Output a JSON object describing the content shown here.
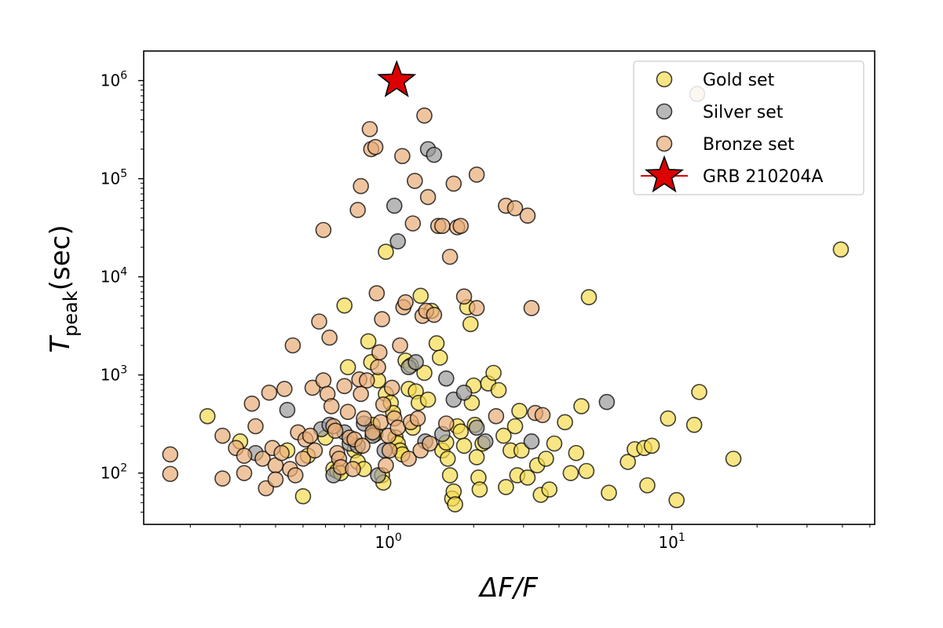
{
  "chart_data": {
    "type": "scatter",
    "xscale": "log",
    "yscale": "log",
    "xlim": [
      0.137,
      52
    ],
    "ylim": [
      30,
      2000000
    ],
    "xlabel": "ΔF/F",
    "ylabel_main": "T",
    "ylabel_sub": "peak",
    "ylabel_unit": "(sec)",
    "grid": false,
    "legend_position": "top-right",
    "x_ticks": [
      {
        "value": 1,
        "base": "10",
        "exp": "0"
      },
      {
        "value": 10,
        "base": "10",
        "exp": "1"
      }
    ],
    "y_ticks": [
      {
        "value": 100,
        "base": "10",
        "exp": "2"
      },
      {
        "value": 1000,
        "base": "10",
        "exp": "3"
      },
      {
        "value": 10000,
        "base": "10",
        "exp": "4"
      },
      {
        "value": 100000,
        "base": "10",
        "exp": "5"
      },
      {
        "value": 1000000,
        "base": "10",
        "exp": "6"
      }
    ],
    "series": [
      {
        "name": "Gold set",
        "color": "#f5dc50",
        "marker": "circle",
        "points": [
          [
            0.23,
            380
          ],
          [
            0.5,
            58
          ],
          [
            0.3,
            210
          ],
          [
            0.44,
            170
          ],
          [
            0.52,
            150
          ],
          [
            0.6,
            230
          ],
          [
            0.64,
            110
          ],
          [
            0.66,
            105
          ],
          [
            0.68,
            100
          ],
          [
            0.7,
            5100
          ],
          [
            0.72,
            1200
          ],
          [
            0.76,
            170
          ],
          [
            0.78,
            130
          ],
          [
            0.82,
            110
          ],
          [
            0.85,
            2200
          ],
          [
            0.87,
            1350
          ],
          [
            0.88,
            310
          ],
          [
            0.9,
            250
          ],
          [
            0.92,
            880
          ],
          [
            0.95,
            95
          ],
          [
            0.96,
            80
          ],
          [
            0.98,
            640
          ],
          [
            0.98,
            18000
          ],
          [
            1.02,
            520
          ],
          [
            1.04,
            410
          ],
          [
            1.06,
            230
          ],
          [
            1.08,
            200
          ],
          [
            1.1,
            170
          ],
          [
            1.12,
            155
          ],
          [
            1.15,
            1400
          ],
          [
            1.18,
            720
          ],
          [
            1.2,
            1250
          ],
          [
            1.22,
            290
          ],
          [
            1.25,
            680
          ],
          [
            1.28,
            520
          ],
          [
            1.3,
            6400
          ],
          [
            1.34,
            1050
          ],
          [
            1.38,
            560
          ],
          [
            1.42,
            4500
          ],
          [
            1.48,
            2100
          ],
          [
            1.52,
            1500
          ],
          [
            1.55,
            170
          ],
          [
            1.6,
            205
          ],
          [
            1.62,
            140
          ],
          [
            1.65,
            95
          ],
          [
            1.68,
            55
          ],
          [
            1.7,
            65
          ],
          [
            1.72,
            48
          ],
          [
            1.75,
            300
          ],
          [
            1.8,
            265
          ],
          [
            1.85,
            190
          ],
          [
            1.9,
            4900
          ],
          [
            1.95,
            3300
          ],
          [
            1.97,
            520
          ],
          [
            2.0,
            780
          ],
          [
            2.02,
            310
          ],
          [
            2.05,
            145
          ],
          [
            2.08,
            90
          ],
          [
            2.1,
            68
          ],
          [
            2.15,
            200
          ],
          [
            2.25,
            820
          ],
          [
            2.35,
            1050
          ],
          [
            2.45,
            700
          ],
          [
            2.55,
            240
          ],
          [
            2.6,
            72
          ],
          [
            2.7,
            170
          ],
          [
            2.8,
            300
          ],
          [
            2.85,
            95
          ],
          [
            2.9,
            430
          ],
          [
            2.95,
            170
          ],
          [
            3.1,
            90
          ],
          [
            3.35,
            120
          ],
          [
            3.45,
            60
          ],
          [
            3.6,
            140
          ],
          [
            3.7,
            68
          ],
          [
            3.85,
            200
          ],
          [
            4.2,
            330
          ],
          [
            4.4,
            100
          ],
          [
            4.6,
            160
          ],
          [
            4.8,
            480
          ],
          [
            5.0,
            105
          ],
          [
            5.1,
            6200
          ],
          [
            6.0,
            63
          ],
          [
            7.0,
            130
          ],
          [
            7.4,
            175
          ],
          [
            8.0,
            180
          ],
          [
            8.2,
            75
          ],
          [
            8.5,
            190
          ],
          [
            9.7,
            360
          ],
          [
            10.4,
            53
          ],
          [
            12.0,
            310
          ],
          [
            12.5,
            670
          ],
          [
            16.5,
            140
          ],
          [
            39.5,
            19000
          ]
        ]
      },
      {
        "name": "Silver set",
        "color": "#9a9a9a",
        "marker": "circle",
        "points": [
          [
            0.34,
            160
          ],
          [
            0.44,
            440
          ],
          [
            0.58,
            280
          ],
          [
            0.62,
            310
          ],
          [
            0.64,
            95
          ],
          [
            0.7,
            260
          ],
          [
            0.73,
            200
          ],
          [
            0.78,
            190
          ],
          [
            0.82,
            320
          ],
          [
            0.88,
            240
          ],
          [
            0.92,
            95
          ],
          [
            0.97,
            170
          ],
          [
            1.05,
            53000
          ],
          [
            1.08,
            23000
          ],
          [
            1.18,
            1200
          ],
          [
            1.25,
            1350
          ],
          [
            1.35,
            210
          ],
          [
            1.38,
            200000
          ],
          [
            1.45,
            175000
          ],
          [
            1.55,
            250
          ],
          [
            1.6,
            920
          ],
          [
            1.7,
            560
          ],
          [
            1.85,
            660
          ],
          [
            2.05,
            290
          ],
          [
            2.2,
            210
          ],
          [
            3.2,
            210
          ],
          [
            5.9,
            530
          ]
        ]
      },
      {
        "name": "Bronze set",
        "color": "#e8ad78",
        "marker": "circle",
        "points": [
          [
            0.17,
            98
          ],
          [
            0.17,
            155
          ],
          [
            0.26,
            240
          ],
          [
            0.26,
            88
          ],
          [
            0.29,
            180
          ],
          [
            0.31,
            100
          ],
          [
            0.31,
            150
          ],
          [
            0.33,
            510
          ],
          [
            0.34,
            300
          ],
          [
            0.36,
            140
          ],
          [
            0.37,
            70
          ],
          [
            0.38,
            660
          ],
          [
            0.39,
            180
          ],
          [
            0.4,
            120
          ],
          [
            0.4,
            86
          ],
          [
            0.42,
            160
          ],
          [
            0.43,
            720
          ],
          [
            0.45,
            110
          ],
          [
            0.46,
            2000
          ],
          [
            0.47,
            95
          ],
          [
            0.48,
            260
          ],
          [
            0.5,
            140
          ],
          [
            0.51,
            220
          ],
          [
            0.53,
            240
          ],
          [
            0.54,
            740
          ],
          [
            0.55,
            170
          ],
          [
            0.57,
            3500
          ],
          [
            0.59,
            30000
          ],
          [
            0.59,
            880
          ],
          [
            0.61,
            640
          ],
          [
            0.62,
            2400
          ],
          [
            0.63,
            480
          ],
          [
            0.64,
            300
          ],
          [
            0.65,
            270
          ],
          [
            0.66,
            160
          ],
          [
            0.67,
            140
          ],
          [
            0.68,
            115
          ],
          [
            0.7,
            770
          ],
          [
            0.72,
            420
          ],
          [
            0.73,
            230
          ],
          [
            0.75,
            110
          ],
          [
            0.76,
            220
          ],
          [
            0.78,
            48000
          ],
          [
            0.79,
            900
          ],
          [
            0.8,
            84000
          ],
          [
            0.8,
            640
          ],
          [
            0.81,
            190
          ],
          [
            0.82,
            360
          ],
          [
            0.84,
            880
          ],
          [
            0.86,
            320000
          ],
          [
            0.87,
            200000
          ],
          [
            0.88,
            260
          ],
          [
            0.9,
            210000
          ],
          [
            0.91,
            6800
          ],
          [
            0.92,
            1200
          ],
          [
            0.93,
            1700
          ],
          [
            0.94,
            330
          ],
          [
            0.95,
            3700
          ],
          [
            0.96,
            500
          ],
          [
            0.98,
            120
          ],
          [
            1.0,
            240
          ],
          [
            1.01,
            170
          ],
          [
            1.03,
            740
          ],
          [
            1.05,
            360
          ],
          [
            1.08,
            290
          ],
          [
            1.1,
            2000
          ],
          [
            1.12,
            170000
          ],
          [
            1.13,
            4900
          ],
          [
            1.15,
            5500
          ],
          [
            1.18,
            140
          ],
          [
            1.2,
            330
          ],
          [
            1.22,
            35000
          ],
          [
            1.24,
            95000
          ],
          [
            1.27,
            360
          ],
          [
            1.3,
            170
          ],
          [
            1.32,
            4000
          ],
          [
            1.34,
            440000
          ],
          [
            1.36,
            4500
          ],
          [
            1.38,
            65000
          ],
          [
            1.4,
            200
          ],
          [
            1.45,
            4100
          ],
          [
            1.5,
            33000
          ],
          [
            1.55,
            33000
          ],
          [
            1.6,
            320
          ],
          [
            1.65,
            16000
          ],
          [
            1.7,
            89000
          ],
          [
            1.75,
            32000
          ],
          [
            1.8,
            33000
          ],
          [
            1.85,
            6300
          ],
          [
            2.05,
            4800
          ],
          [
            2.05,
            110000
          ],
          [
            2.4,
            380
          ],
          [
            2.6,
            53000
          ],
          [
            2.8,
            50000
          ],
          [
            3.1,
            42000
          ],
          [
            3.2,
            4800
          ],
          [
            3.3,
            410
          ],
          [
            3.5,
            390
          ],
          [
            12.3,
            730000
          ]
        ]
      },
      {
        "name": "GRB 210204A",
        "color": "#dd0000",
        "marker": "star",
        "points": [
          [
            1.07,
            1000000
          ]
        ]
      }
    ]
  }
}
